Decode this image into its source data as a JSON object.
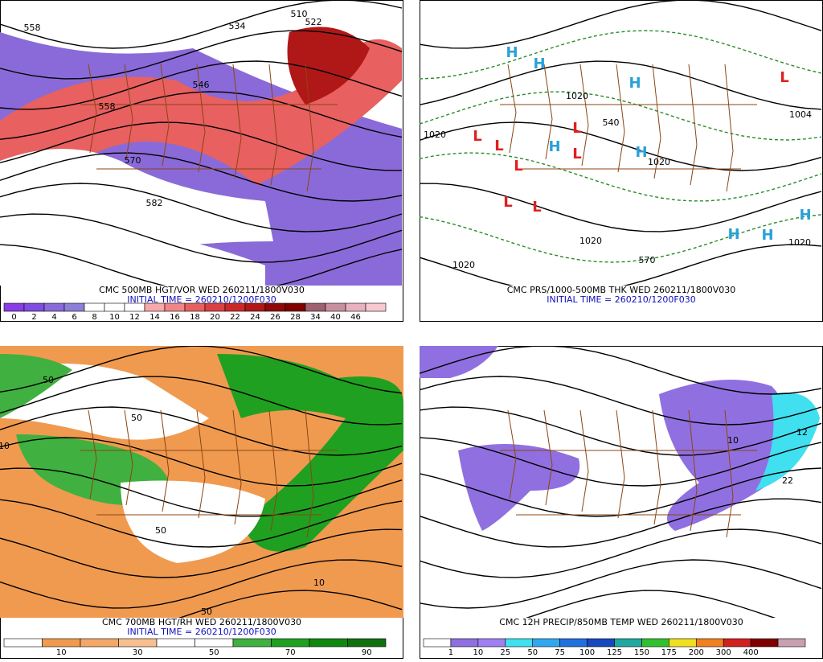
{
  "panels": [
    {
      "caption": "CMC 500MB HGT/VOR WED 260211/1800V030",
      "init": "INITIAL TIME = 260210/1200F030",
      "colorbar": {
        "labels": [
          0,
          2,
          4,
          6,
          8,
          10,
          12,
          14,
          16,
          18,
          20,
          22,
          24,
          26,
          28,
          34,
          40,
          46
        ],
        "colors": [
          "#8a3ce6",
          "#7f4de0",
          "#8a6ad8",
          "#8e7ed8",
          "#ffffff",
          "#ffffff",
          "#ffffff",
          "#f7a8a8",
          "#f08686",
          "#e86060",
          "#dc4040",
          "#cc2828",
          "#b01818",
          "#900808",
          "#800000",
          "#a06070",
          "#c890a0",
          "#e8b0c0",
          "#f8c8d0"
        ]
      },
      "labels": [
        "558",
        "534",
        "510",
        "522",
        "546",
        "558",
        "570",
        "582"
      ]
    },
    {
      "caption": "CMC PRS/1000-500MB THK WED 260211/1800V030",
      "init": "INITIAL TIME = 260210/1200F030",
      "labels": [
        "H",
        "H",
        "H",
        "H",
        "H",
        "H",
        "H",
        "H",
        "L",
        "L",
        "L",
        "L",
        "L",
        "L",
        "L",
        "L",
        "1020",
        "1004",
        "1020",
        "540",
        "1020",
        "1020",
        "1020",
        "570",
        "1020"
      ]
    },
    {
      "caption": "CMC 700MB HGT/RH WED 260211/1800V030",
      "init": "INITIAL TIME = 260210/1200F030",
      "colorbar": {
        "labels": [
          10,
          30,
          50,
          70,
          90
        ],
        "colors": [
          "#ffffff",
          "#f09a50",
          "#f4a868",
          "#f8c090",
          "#ffffff",
          "#ffffff",
          "#40b040",
          "#20a020",
          "#108810",
          "#107010"
        ]
      },
      "labels": [
        "50",
        "10",
        "50",
        "50",
        "10",
        "50"
      ]
    },
    {
      "caption": "CMC 12H PRECIP/850MB TEMP WED 260211/1800V030",
      "colorbar": {
        "labels": [
          1,
          10,
          25,
          50,
          75,
          100,
          125,
          150,
          175,
          200,
          300,
          400
        ],
        "colors": [
          "#ffffff",
          "#9070e0",
          "#a080f0",
          "#40e0f0",
          "#30a8f0",
          "#2070e0",
          "#1848c0",
          "#20a8a0",
          "#30c030",
          "#f0e020",
          "#f08020",
          "#d02020",
          "#800000",
          "#c8a0b0"
        ]
      },
      "labels": [
        "12",
        "10",
        "22"
      ]
    }
  ]
}
